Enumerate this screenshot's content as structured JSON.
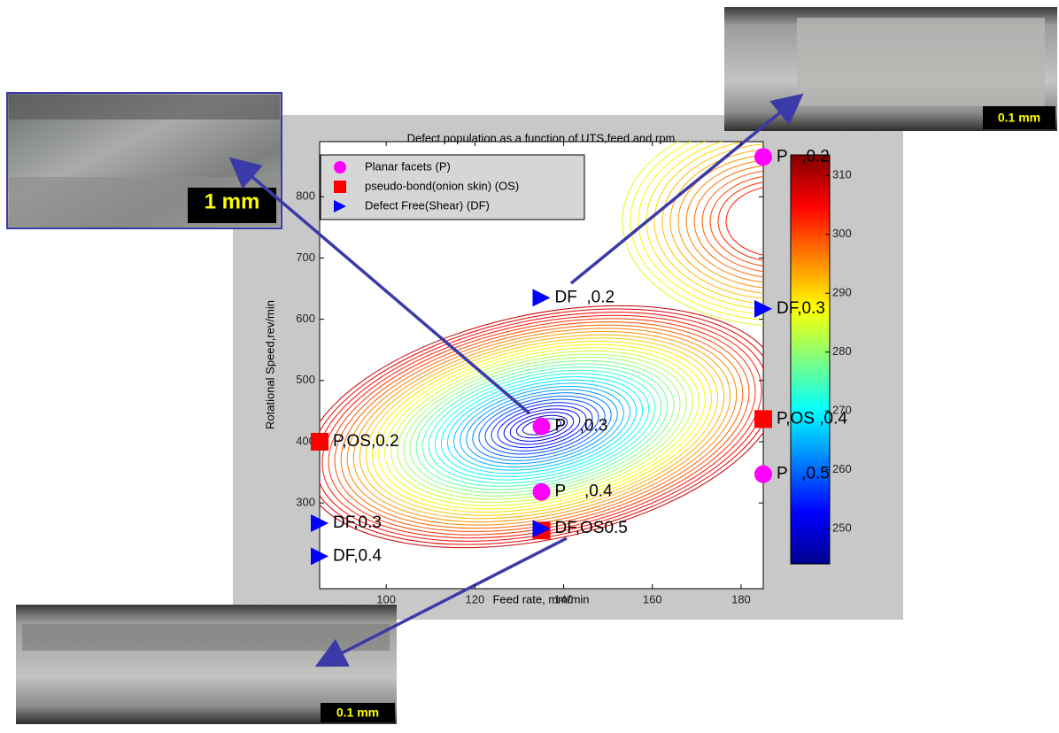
{
  "chart_data": {
    "type": "scatter",
    "title": "Defect population as a function of UTS,feed and rpm",
    "x_label": "Feed rate, mm/min",
    "y_label": "Rotational Speed,rev/min",
    "xlim": [
      85,
      185
    ],
    "xticks": [
      100,
      120,
      140,
      160,
      180
    ],
    "ylim": [
      160,
      890
    ],
    "yticks": [
      300,
      400,
      500,
      600,
      700,
      800
    ],
    "colorbar": {
      "clim": [
        244,
        313.5
      ],
      "ticks": [
        250,
        260,
        270,
        280,
        290,
        300,
        310
      ],
      "colormap": "jet"
    },
    "legend": "top-left",
    "series": [
      {
        "name": "Planar facets (P)",
        "color": "#ff00ff",
        "marker": "circle",
        "x": [
          135,
          135,
          185,
          185
        ],
        "values": [
          425,
          318,
          865,
          347
        ],
        "point_labels": [
          "P   ,0.3",
          "P    ,0.4",
          "P   ,0.2",
          "P   ,0.5"
        ]
      },
      {
        "name": "pseudo-bond(onion skin) (OS)",
        "color": "#ff0000",
        "marker": "square",
        "x": [
          85,
          185,
          135
        ],
        "values": [
          400,
          437,
          255
        ],
        "point_labels": [
          "P,OS,0.2",
          "P,OS ,0.4",
          null
        ]
      },
      {
        "name": "Defect Free(Shear) (DF)",
        "color": "#0000ff",
        "marker": "triangle",
        "x": [
          135,
          185,
          85,
          85,
          135
        ],
        "values": [
          635,
          617,
          267,
          213,
          258
        ],
        "point_labels": [
          "DF  ,0.2",
          "DF,0.3",
          "DF,0.3",
          "DF,0.4",
          "DF,OS0.5"
        ]
      }
    ]
  },
  "images": [
    {
      "scale_label": "1 mm"
    },
    {
      "scale_label": "0.1 mm"
    },
    {
      "scale_label": "0.1 mm"
    }
  ]
}
